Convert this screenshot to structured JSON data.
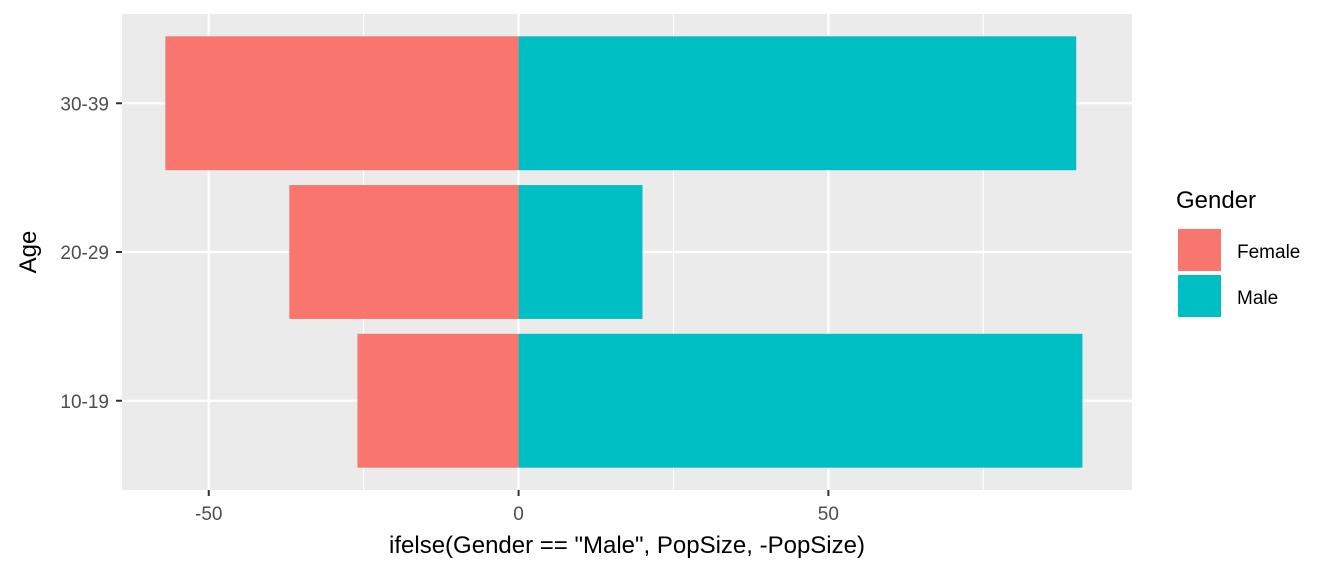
{
  "chart_data": {
    "type": "bar",
    "orientation": "horizontal",
    "stacked": "diverging",
    "categories": [
      "10-19",
      "20-29",
      "30-39"
    ],
    "series": [
      {
        "name": "Female",
        "values": [
          -26,
          -37,
          -57
        ],
        "color": "#F8766D"
      },
      {
        "name": "Male",
        "values": [
          91,
          20,
          90
        ],
        "color": "#00BFC4"
      }
    ],
    "xlabel": "ifelse(Gender == \"Male\", PopSize, -PopSize)",
    "ylabel": "Age",
    "xlim": [
      -64,
      99
    ],
    "xticks": [
      -50,
      0,
      50
    ],
    "xtick_labels": [
      "-50",
      "0",
      "50"
    ],
    "legend": {
      "title": "Gender",
      "position": "right",
      "entries": [
        "Female",
        "Male"
      ]
    },
    "grid": true,
    "panel_background": "#EBEBEB",
    "grid_color": "#FFFFFF"
  }
}
